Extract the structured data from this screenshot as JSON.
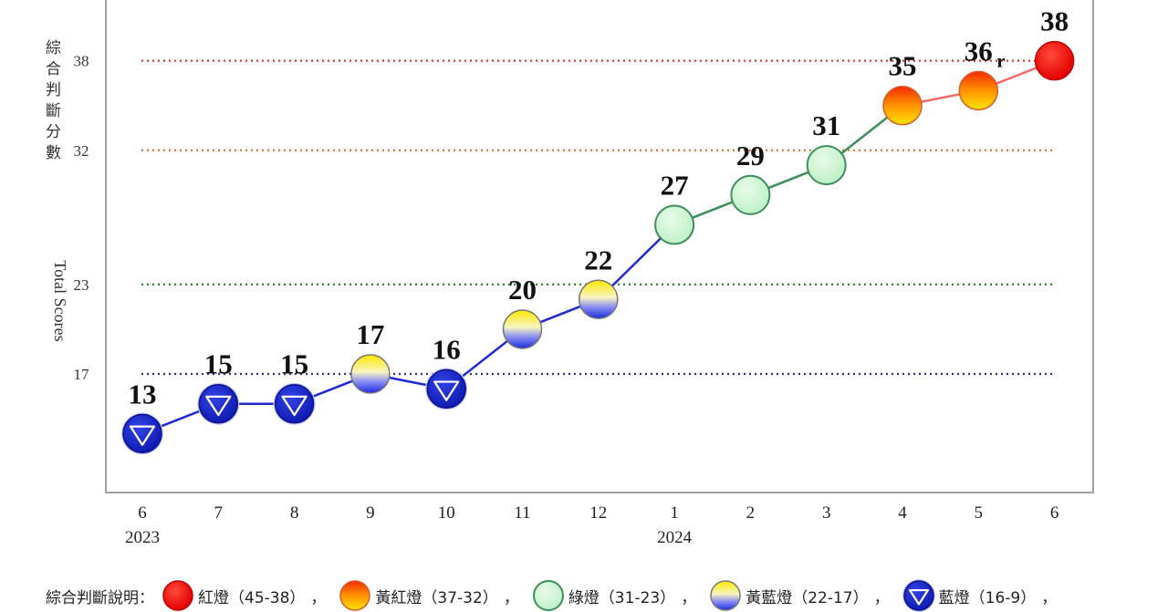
{
  "chart_data": {
    "type": "line",
    "ylabel_zh": "綜合判斷分數",
    "ylabel_en": "Total Scores",
    "yticks": [
      17,
      23,
      32,
      38
    ],
    "ylim": [
      9,
      42
    ],
    "categories": [
      "6",
      "7",
      "8",
      "9",
      "10",
      "11",
      "12",
      "1",
      "2",
      "3",
      "4",
      "5",
      "6"
    ],
    "years": [
      {
        "label": "2023",
        "at_category_index": 0
      },
      {
        "label": "2024",
        "at_category_index": 7
      }
    ],
    "values": [
      13,
      15,
      15,
      17,
      16,
      20,
      22,
      27,
      29,
      31,
      35,
      36,
      38
    ],
    "value_labels": [
      "13",
      "15",
      "15",
      "17",
      "16",
      "20",
      "22",
      "27",
      "29",
      "31",
      "35",
      "36",
      "38"
    ],
    "revised_marker": {
      "index": 11,
      "text": "r"
    },
    "signals": [
      "blue",
      "blue",
      "blue",
      "yellow-blue",
      "blue",
      "yellow-blue",
      "yellow-blue",
      "green",
      "green",
      "green",
      "yellow-red",
      "yellow-red",
      "red"
    ],
    "threshold_lines": [
      {
        "value": 38,
        "color": "#e03030"
      },
      {
        "value": 32,
        "color": "#e8742a"
      },
      {
        "value": 23,
        "color": "#2a8a2a"
      },
      {
        "value": 17,
        "color": "#2b2bb0"
      }
    ],
    "segment_colors": {
      "blue": "#1f2ad1",
      "green": "#3c8f5a",
      "red": "#f26a6a"
    },
    "grid": false
  },
  "legend": {
    "title": "綜合判斷說明：",
    "items": [
      {
        "signal": "red",
        "label": "紅燈（45-38）"
      },
      {
        "signal": "yellow-red",
        "label": "黃紅燈（37-32）"
      },
      {
        "signal": "green",
        "label": "綠燈（31-23）"
      },
      {
        "signal": "yellow-blue",
        "label": "黃藍燈（22-17）"
      },
      {
        "signal": "blue",
        "label": "藍燈（16-9）"
      }
    ],
    "separator": "，"
  }
}
